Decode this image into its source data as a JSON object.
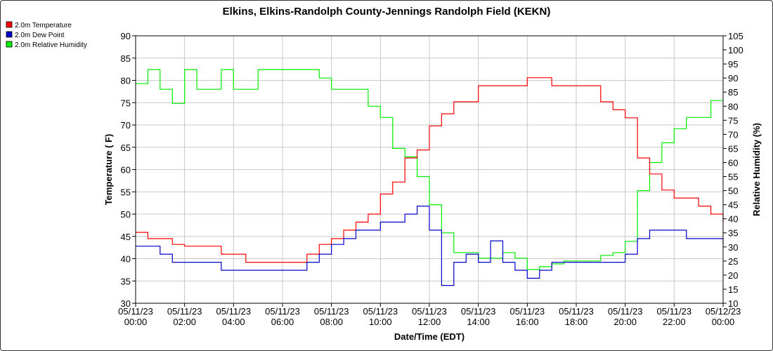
{
  "chart_data": {
    "type": "line",
    "title": "Elkins, Elkins-Randolph County-Jennings Randolph Field (KEKN)",
    "xlabel": "Date/Time (EDT)",
    "ylabel": "Temperature ( F)",
    "y2label": "Relative Humidity (%)",
    "ylim": [
      30,
      90
    ],
    "y2lim": [
      10,
      105
    ],
    "grid": true,
    "legend_position": "top-left",
    "x_ticks": [
      {
        "date": "05/11/23",
        "time": "00:00"
      },
      {
        "date": "05/11/23",
        "time": "02:00"
      },
      {
        "date": "05/11/23",
        "time": "04:00"
      },
      {
        "date": "05/11/23",
        "time": "06:00"
      },
      {
        "date": "05/11/23",
        "time": "08:00"
      },
      {
        "date": "05/11/23",
        "time": "10:00"
      },
      {
        "date": "05/11/23",
        "time": "12:00"
      },
      {
        "date": "05/11/23",
        "time": "14:00"
      },
      {
        "date": "05/11/23",
        "time": "16:00"
      },
      {
        "date": "05/11/23",
        "time": "18:00"
      },
      {
        "date": "05/11/23",
        "time": "20:00"
      },
      {
        "date": "05/11/23",
        "time": "22:00"
      },
      {
        "date": "05/12/23",
        "time": "00:00"
      }
    ],
    "y_ticks": [
      30,
      35,
      40,
      45,
      50,
      55,
      60,
      65,
      70,
      75,
      80,
      85,
      90
    ],
    "y2_ticks": [
      10,
      15,
      20,
      25,
      30,
      35,
      40,
      45,
      50,
      55,
      60,
      65,
      70,
      75,
      80,
      85,
      90,
      95,
      100,
      105
    ],
    "series": [
      {
        "name": "2.0m Temperature",
        "axis": "left",
        "color": "#ff0000",
        "x": [
          "05/11/23 00:00",
          "05/11/23 00:30",
          "05/11/23 01:00",
          "05/11/23 01:30",
          "05/11/23 02:00",
          "05/11/23 02:30",
          "05/11/23 03:00",
          "05/11/23 03:30",
          "05/11/23 04:00",
          "05/11/23 04:30",
          "05/11/23 05:00",
          "05/11/23 05:30",
          "05/11/23 06:00",
          "05/11/23 06:30",
          "05/11/23 07:00",
          "05/11/23 07:30",
          "05/11/23 08:00",
          "05/11/23 08:30",
          "05/11/23 09:00",
          "05/11/23 09:30",
          "05/11/23 10:00",
          "05/11/23 10:30",
          "05/11/23 11:00",
          "05/11/23 11:30",
          "05/11/23 12:00",
          "05/11/23 12:30",
          "05/11/23 13:00",
          "05/11/23 13:30",
          "05/11/23 14:00",
          "05/11/23 14:30",
          "05/11/23 15:00",
          "05/11/23 15:30",
          "05/11/23 16:00",
          "05/11/23 16:30",
          "05/11/23 17:00",
          "05/11/23 17:30",
          "05/11/23 18:00",
          "05/11/23 18:30",
          "05/11/23 19:00",
          "05/11/23 19:30",
          "05/11/23 20:00",
          "05/11/23 20:30",
          "05/11/23 21:00",
          "05/11/23 21:30",
          "05/11/23 22:00",
          "05/11/23 22:30",
          "05/11/23 23:00",
          "05/11/23 23:30",
          "05/12/23 00:00"
        ],
        "values": [
          45.9,
          44.5,
          44.5,
          43.2,
          42.8,
          42.8,
          42.8,
          41.0,
          41.0,
          39.2,
          39.2,
          39.2,
          39.2,
          39.2,
          41.0,
          43.2,
          44.5,
          46.4,
          48.2,
          50.0,
          54.5,
          57.2,
          62.6,
          64.4,
          69.8,
          72.5,
          75.2,
          75.2,
          78.8,
          78.8,
          78.8,
          78.8,
          80.6,
          80.6,
          78.8,
          78.8,
          78.8,
          78.8,
          75.2,
          73.4,
          71.6,
          62.6,
          59.0,
          55.4,
          53.6,
          53.6,
          51.8,
          50.0,
          48.2
        ]
      },
      {
        "name": "2.0m Dew Point",
        "axis": "left",
        "color": "#0000cc",
        "x": [
          "05/11/23 00:00",
          "05/11/23 00:30",
          "05/11/23 01:00",
          "05/11/23 01:30",
          "05/11/23 02:00",
          "05/11/23 02:30",
          "05/11/23 03:00",
          "05/11/23 03:30",
          "05/11/23 04:00",
          "05/11/23 04:30",
          "05/11/23 05:00",
          "05/11/23 05:30",
          "05/11/23 06:00",
          "05/11/23 06:30",
          "05/11/23 07:00",
          "05/11/23 07:30",
          "05/11/23 08:00",
          "05/11/23 08:30",
          "05/11/23 09:00",
          "05/11/23 09:30",
          "05/11/23 10:00",
          "05/11/23 10:30",
          "05/11/23 11:00",
          "05/11/23 11:30",
          "05/11/23 12:00",
          "05/11/23 12:30",
          "05/11/23 13:00",
          "05/11/23 13:30",
          "05/11/23 14:00",
          "05/11/23 14:30",
          "05/11/23 15:00",
          "05/11/23 15:30",
          "05/11/23 16:00",
          "05/11/23 16:30",
          "05/11/23 17:00",
          "05/11/23 17:30",
          "05/11/23 18:00",
          "05/11/23 18:30",
          "05/11/23 19:00",
          "05/11/23 19:30",
          "05/11/23 20:00",
          "05/11/23 20:30",
          "05/11/23 21:00",
          "05/11/23 21:30",
          "05/11/23 22:00",
          "05/11/23 22:30",
          "05/11/23 23:00",
          "05/11/23 23:30",
          "05/12/23 00:00"
        ],
        "values": [
          42.8,
          42.8,
          41.0,
          39.2,
          39.2,
          39.2,
          39.2,
          37.4,
          37.4,
          37.4,
          37.4,
          37.4,
          37.4,
          37.4,
          39.2,
          41.0,
          43.2,
          44.5,
          46.4,
          46.4,
          48.2,
          48.2,
          50.0,
          51.8,
          46.4,
          34.0,
          39.2,
          41.0,
          39.2,
          44.0,
          39.2,
          37.4,
          35.6,
          37.4,
          39.2,
          39.2,
          39.2,
          39.2,
          39.2,
          39.2,
          41.0,
          44.5,
          46.4,
          46.4,
          46.4,
          44.5,
          44.5,
          44.5,
          43.2
        ]
      },
      {
        "name": "2.0m Relative Humidity",
        "axis": "right",
        "color": "#00ee00",
        "x": [
          "05/11/23 00:00",
          "05/11/23 00:30",
          "05/11/23 01:00",
          "05/11/23 01:30",
          "05/11/23 02:00",
          "05/11/23 02:30",
          "05/11/23 03:00",
          "05/11/23 03:30",
          "05/11/23 04:00",
          "05/11/23 04:30",
          "05/11/23 05:00",
          "05/11/23 05:30",
          "05/11/23 06:00",
          "05/11/23 06:30",
          "05/11/23 07:00",
          "05/11/23 07:30",
          "05/11/23 08:00",
          "05/11/23 08:30",
          "05/11/23 09:00",
          "05/11/23 09:30",
          "05/11/23 10:00",
          "05/11/23 10:30",
          "05/11/23 11:00",
          "05/11/23 11:30",
          "05/11/23 12:00",
          "05/11/23 12:30",
          "05/11/23 13:00",
          "05/11/23 13:30",
          "05/11/23 14:00",
          "05/11/23 14:30",
          "05/11/23 15:00",
          "05/11/23 15:30",
          "05/11/23 16:00",
          "05/11/23 16:30",
          "05/11/23 17:00",
          "05/11/23 17:30",
          "05/11/23 18:00",
          "05/11/23 18:30",
          "05/11/23 19:00",
          "05/11/23 19:30",
          "05/11/23 20:00",
          "05/11/23 20:30",
          "05/11/23 21:00",
          "05/11/23 21:30",
          "05/11/23 22:00",
          "05/11/23 22:30",
          "05/11/23 23:00",
          "05/11/23 23:30",
          "05/12/23 00:00"
        ],
        "values": [
          88,
          93,
          86,
          81,
          93,
          86,
          86,
          93,
          86,
          86,
          93,
          93,
          93,
          93,
          93,
          90,
          86,
          86,
          86,
          80,
          76,
          65,
          62,
          55,
          45,
          35,
          28,
          28,
          26,
          26,
          28,
          26,
          22,
          23,
          24,
          25,
          25,
          25,
          27,
          28,
          32,
          50,
          60,
          67,
          72,
          76,
          76,
          82,
          82
        ]
      }
    ]
  }
}
